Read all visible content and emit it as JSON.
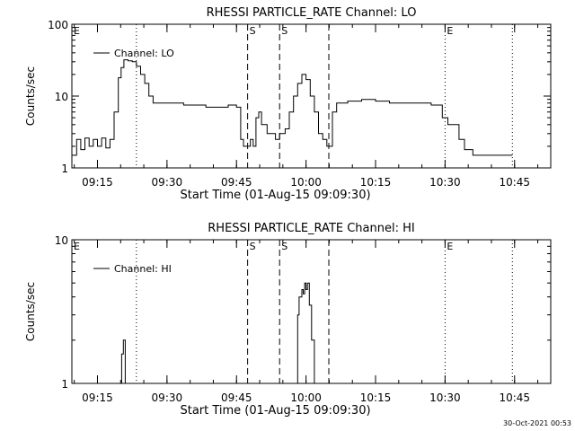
{
  "footer_timestamp": "30-Oct-2021 00:53",
  "chart_data": [
    {
      "type": "line",
      "title": "RHESSI PARTICLE_RATE Channel: LO",
      "xlabel": "Start Time (01-Aug-15 09:09:30)",
      "ylabel": "Counts/sec",
      "yscale": "log",
      "xlim": [
        9.158,
        10.88
      ],
      "ylim": [
        1,
        100
      ],
      "x_ticks": [
        "09:15",
        "09:30",
        "09:45",
        "10:00",
        "10:15",
        "10:30",
        "10:45"
      ],
      "y_ticks": [
        "1",
        "10",
        "100"
      ],
      "legend": "Channel: LO",
      "legend_position": "top-left",
      "markers": [
        {
          "label": "E",
          "time": 9.158,
          "style": "none"
        },
        {
          "label": "",
          "time": 9.39,
          "style": "dotted"
        },
        {
          "label": "S",
          "time": 9.79,
          "style": "dashed"
        },
        {
          "label": "S",
          "time": 9.905,
          "style": "dashed"
        },
        {
          "label": "",
          "time": 10.082,
          "style": "dashed"
        },
        {
          "label": "E",
          "time": 10.5,
          "style": "dotted"
        },
        {
          "label": "",
          "time": 10.742,
          "style": "dotted"
        }
      ],
      "series": [
        {
          "x": [
            9.158,
            9.175,
            9.19,
            9.205,
            9.22,
            9.235,
            9.25,
            9.265,
            9.28,
            9.295,
            9.31,
            9.325,
            9.335,
            9.345,
            9.36,
            9.375,
            9.39,
            9.405,
            9.42,
            9.435,
            9.45,
            9.48,
            9.52,
            9.56,
            9.6,
            9.64,
            9.68,
            9.72,
            9.75,
            9.765,
            9.775,
            9.79,
            9.8,
            9.81,
            9.82,
            9.83,
            9.84,
            9.86,
            9.875,
            9.89,
            9.905,
            9.915,
            9.925,
            9.94,
            9.955,
            9.97,
            9.985,
            10.0,
            10.015,
            10.03,
            10.045,
            10.06,
            10.075,
            10.082,
            10.095,
            10.11,
            10.15,
            10.2,
            10.25,
            10.3,
            10.35,
            10.4,
            10.45,
            10.49,
            10.51,
            10.53,
            10.55,
            10.57,
            10.6,
            10.65,
            10.7,
            10.742
          ],
          "y": [
            1.5,
            2.5,
            1.8,
            2.6,
            2.0,
            2.5,
            2.0,
            2.6,
            1.9,
            2.5,
            6,
            18,
            25,
            32,
            31,
            30,
            26,
            20,
            15,
            10,
            8,
            8,
            8,
            7.5,
            7.5,
            7,
            7,
            7.5,
            7,
            2.5,
            2,
            2,
            2.5,
            2,
            5,
            6,
            4,
            3,
            3,
            2.5,
            3,
            3,
            3.5,
            6,
            10,
            15,
            20,
            17,
            10,
            6,
            3,
            2.5,
            2,
            2,
            6,
            8,
            8.5,
            9,
            8.5,
            8,
            8,
            8,
            7.5,
            5,
            4,
            4,
            2.5,
            1.8,
            1.5,
            1.5,
            1.5,
            1.5
          ]
        }
      ]
    },
    {
      "type": "line",
      "title": "RHESSI PARTICLE_RATE Channel: HI",
      "xlabel": "Start Time (01-Aug-15 09:09:30)",
      "ylabel": "Counts/sec",
      "yscale": "log",
      "xlim": [
        9.158,
        10.88
      ],
      "ylim": [
        1,
        10
      ],
      "x_ticks": [
        "09:15",
        "09:30",
        "09:45",
        "10:00",
        "10:15",
        "10:30",
        "10:45"
      ],
      "y_ticks": [
        "1",
        "10"
      ],
      "legend": "Channel: HI",
      "legend_position": "top-left",
      "markers": [
        {
          "label": "E",
          "time": 9.158,
          "style": "none"
        },
        {
          "label": "",
          "time": 9.39,
          "style": "dotted"
        },
        {
          "label": "S",
          "time": 9.79,
          "style": "dashed"
        },
        {
          "label": "S",
          "time": 9.905,
          "style": "dashed"
        },
        {
          "label": "",
          "time": 10.082,
          "style": "dashed"
        },
        {
          "label": "E",
          "time": 10.5,
          "style": "dotted"
        },
        {
          "label": "",
          "time": 10.742,
          "style": "dotted"
        }
      ],
      "series": [
        {
          "x": [
            9.33,
            9.337,
            9.343,
            9.35,
            9.96,
            9.97,
            9.975,
            9.985,
            9.99,
            9.995,
            10.0,
            10.005,
            10.012,
            10.02,
            10.03
          ],
          "y": [
            1,
            1.6,
            2,
            1,
            1,
            3,
            4,
            4.5,
            4.2,
            5,
            4.5,
            5,
            3.5,
            2,
            1
          ]
        }
      ]
    }
  ]
}
